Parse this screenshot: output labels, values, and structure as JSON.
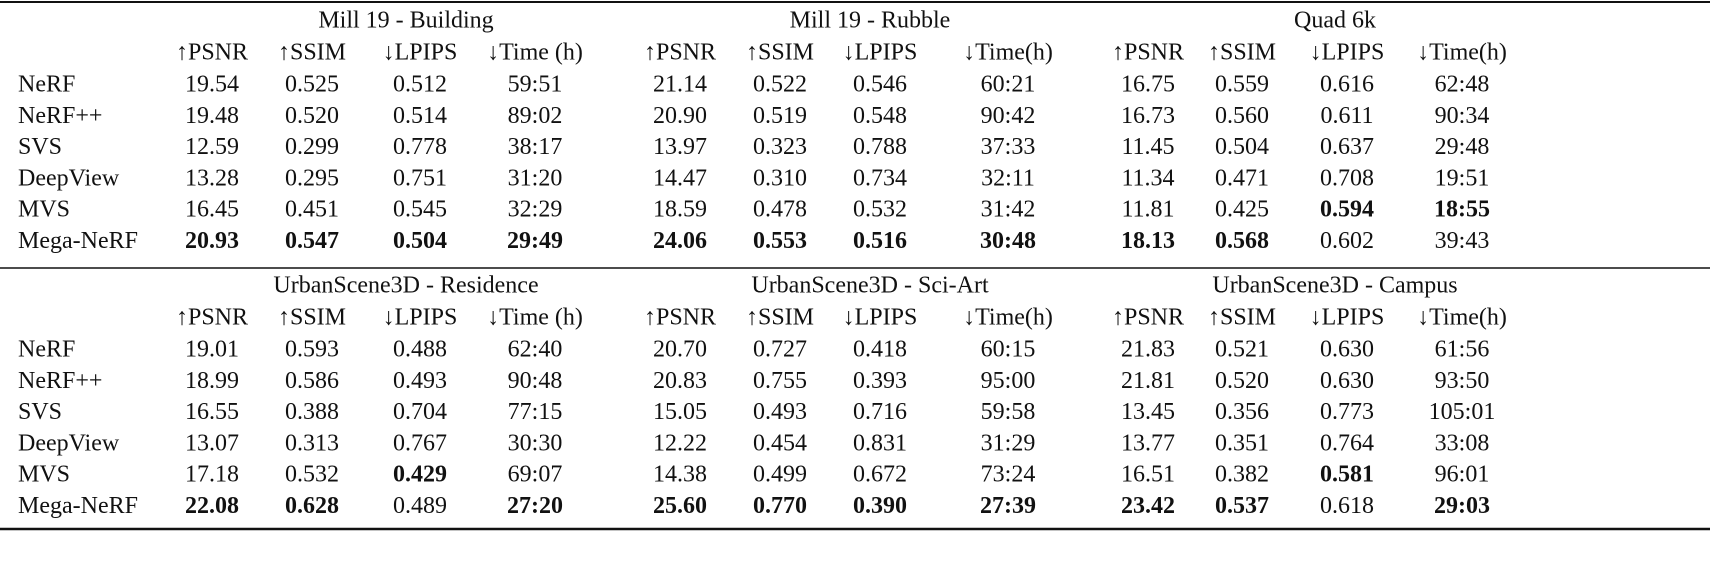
{
  "blocks": [
    {
      "groups": [
        {
          "title": "Mill 19 - Building",
          "columns": [
            "↑PSNR",
            "↑SSIM",
            "↓LPIPS",
            "↓Time (h)"
          ]
        },
        {
          "title": "Mill 19 - Rubble",
          "columns": [
            "↑PSNR",
            "↑SSIM",
            "↓LPIPS",
            "↓Time(h)"
          ]
        },
        {
          "title": "Quad 6k",
          "columns": [
            "↑PSNR",
            "↑SSIM",
            "↓LPIPS",
            "↓Time(h)"
          ]
        }
      ],
      "rows": [
        {
          "method": "NeRF",
          "cells": [
            "19.54",
            "0.525",
            "0.512",
            "59:51",
            "21.14",
            "0.522",
            "0.546",
            "60:21",
            "16.75",
            "0.559",
            "0.616",
            "62:48"
          ],
          "bold": []
        },
        {
          "method": "NeRF++",
          "cells": [
            "19.48",
            "0.520",
            "0.514",
            "89:02",
            "20.90",
            "0.519",
            "0.548",
            "90:42",
            "16.73",
            "0.560",
            "0.611",
            "90:34"
          ],
          "bold": []
        },
        {
          "method": "SVS",
          "cells": [
            "12.59",
            "0.299",
            "0.778",
            "38:17",
            "13.97",
            "0.323",
            "0.788",
            "37:33",
            "11.45",
            "0.504",
            "0.637",
            "29:48"
          ],
          "bold": []
        },
        {
          "method": "DeepView",
          "cells": [
            "13.28",
            "0.295",
            "0.751",
            "31:20",
            "14.47",
            "0.310",
            "0.734",
            "32:11",
            "11.34",
            "0.471",
            "0.708",
            "19:51"
          ],
          "bold": []
        },
        {
          "method": "MVS",
          "cells": [
            "16.45",
            "0.451",
            "0.545",
            "32:29",
            "18.59",
            "0.478",
            "0.532",
            "31:42",
            "11.81",
            "0.425",
            "0.594",
            "18:55"
          ],
          "bold": [
            10,
            11
          ]
        },
        {
          "method": "Mega-NeRF",
          "cells": [
            "20.93",
            "0.547",
            "0.504",
            "29:49",
            "24.06",
            "0.553",
            "0.516",
            "30:48",
            "18.13",
            "0.568",
            "0.602",
            "39:43"
          ],
          "bold": [
            0,
            1,
            2,
            3,
            4,
            5,
            6,
            7,
            8,
            9
          ]
        }
      ]
    },
    {
      "groups": [
        {
          "title": "UrbanScene3D - Residence",
          "columns": [
            "↑PSNR",
            "↑SSIM",
            "↓LPIPS",
            "↓Time (h)"
          ]
        },
        {
          "title": "UrbanScene3D - Sci-Art",
          "columns": [
            "↑PSNR",
            "↑SSIM",
            "↓LPIPS",
            "↓Time(h)"
          ]
        },
        {
          "title": "UrbanScene3D - Campus",
          "columns": [
            "↑PSNR",
            "↑SSIM",
            "↓LPIPS",
            "↓Time(h)"
          ]
        }
      ],
      "rows": [
        {
          "method": "NeRF",
          "cells": [
            "19.01",
            "0.593",
            "0.488",
            "62:40",
            "20.70",
            "0.727",
            "0.418",
            "60:15",
            "21.83",
            "0.521",
            "0.630",
            "61:56"
          ],
          "bold": []
        },
        {
          "method": "NeRF++",
          "cells": [
            "18.99",
            "0.586",
            "0.493",
            "90:48",
            "20.83",
            "0.755",
            "0.393",
            "95:00",
            "21.81",
            "0.520",
            "0.630",
            "93:50"
          ],
          "bold": []
        },
        {
          "method": "SVS",
          "cells": [
            "16.55",
            "0.388",
            "0.704",
            "77:15",
            "15.05",
            "0.493",
            "0.716",
            "59:58",
            "13.45",
            "0.356",
            "0.773",
            "105:01"
          ],
          "bold": []
        },
        {
          "method": "DeepView",
          "cells": [
            "13.07",
            "0.313",
            "0.767",
            "30:30",
            "12.22",
            "0.454",
            "0.831",
            "31:29",
            "13.77",
            "0.351",
            "0.764",
            "33:08"
          ],
          "bold": []
        },
        {
          "method": "MVS",
          "cells": [
            "17.18",
            "0.532",
            "0.429",
            "69:07",
            "14.38",
            "0.499",
            "0.672",
            "73:24",
            "16.51",
            "0.382",
            "0.581",
            "96:01"
          ],
          "bold": [
            2,
            10
          ]
        },
        {
          "method": "Mega-NeRF",
          "cells": [
            "22.08",
            "0.628",
            "0.489",
            "27:20",
            "25.60",
            "0.770",
            "0.390",
            "27:39",
            "23.42",
            "0.537",
            "0.618",
            "29:03"
          ],
          "bold": [
            0,
            1,
            3,
            4,
            5,
            6,
            7,
            8,
            9,
            11
          ]
        }
      ]
    }
  ]
}
